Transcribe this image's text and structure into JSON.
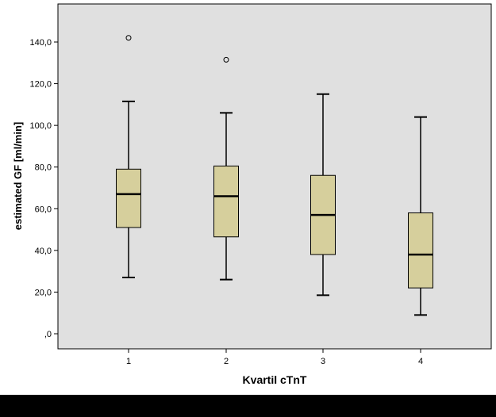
{
  "chart_data": {
    "type": "boxplot",
    "xlabel": "Kvartil cTnT",
    "ylabel": "estimated GF [ml/min]",
    "categories": [
      "1",
      "2",
      "3",
      "4"
    ],
    "ylim": [
      -4,
      157
    ],
    "yticks": [
      0,
      20,
      40,
      60,
      80,
      100,
      120,
      140
    ],
    "ytick_labels": [
      ",0",
      "20,0",
      "40,0",
      "60,0",
      "80,0",
      "100,0",
      "120,0",
      "140,0"
    ],
    "grid": false,
    "legend": "none",
    "boxes": [
      {
        "category": "1",
        "whisker_low": 27,
        "q1": 51,
        "median": 67,
        "q3": 79,
        "whisker_high": 111.5,
        "outliers": [
          142
        ]
      },
      {
        "category": "2",
        "whisker_low": 26,
        "q1": 46.5,
        "median": 66,
        "q3": 80.5,
        "whisker_high": 106,
        "outliers": [
          131.5
        ]
      },
      {
        "category": "3",
        "whisker_low": 18.5,
        "q1": 38,
        "median": 57,
        "q3": 76,
        "whisker_high": 115,
        "outliers": []
      },
      {
        "category": "4",
        "whisker_low": 9,
        "q1": 22,
        "median": 38,
        "q3": 58,
        "whisker_high": 104,
        "outliers": []
      }
    ],
    "colors": {
      "plot_background": "#e0e0e0",
      "box_fill": "#d6cf9c",
      "axis": "#000000"
    }
  }
}
